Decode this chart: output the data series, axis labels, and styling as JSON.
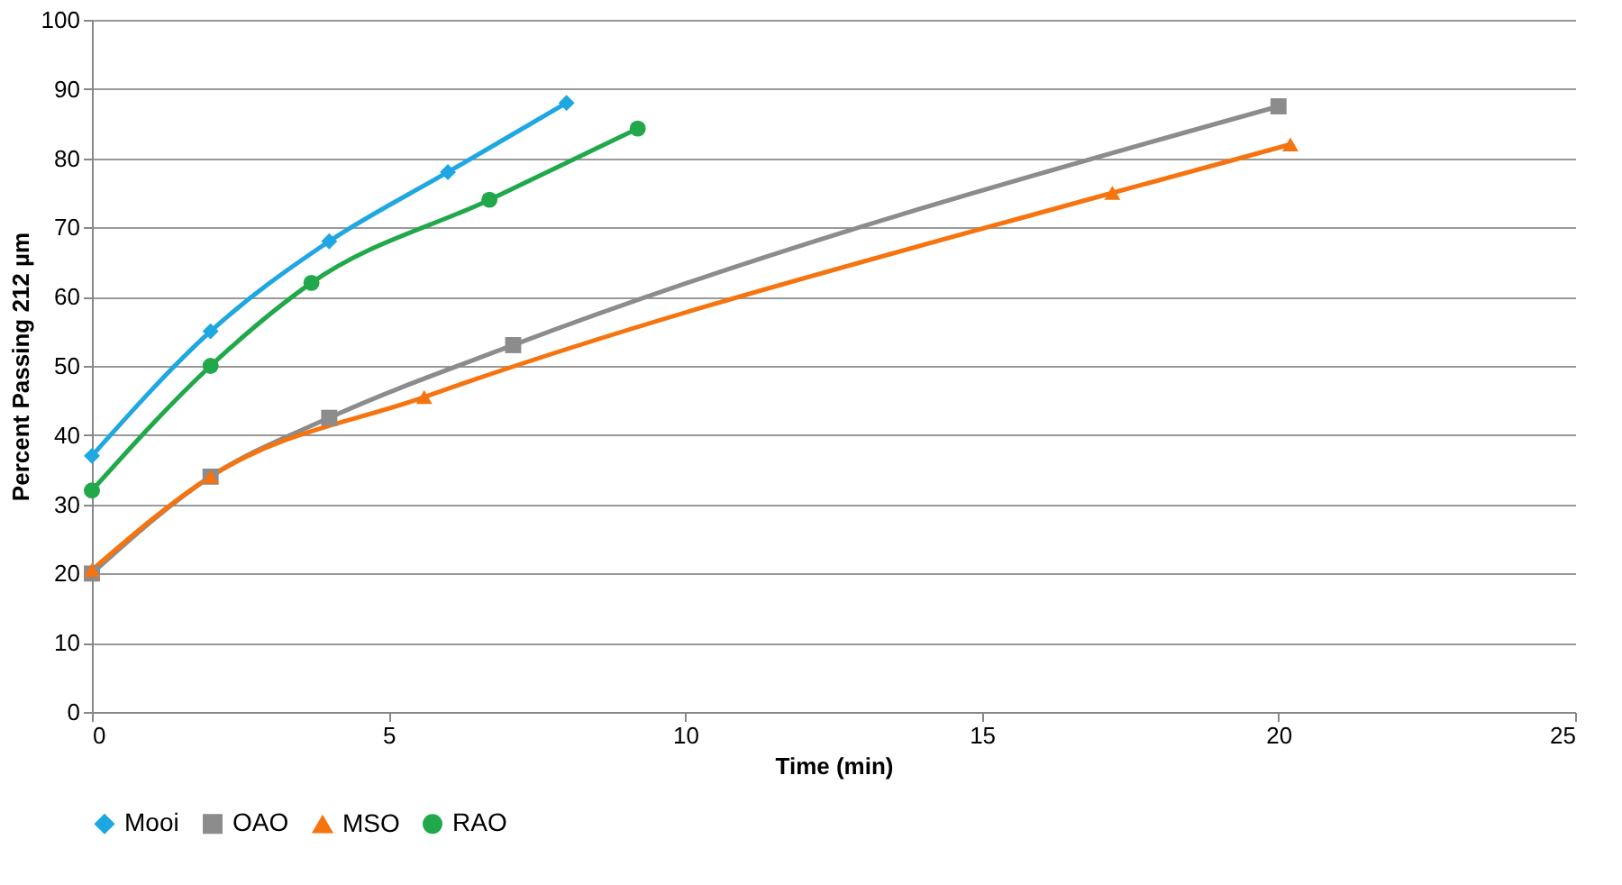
{
  "chart_data": {
    "type": "line",
    "xlabel": "Time (min)",
    "ylabel": "Percent  Passing  212  µm",
    "xlim": [
      0,
      25
    ],
    "xticks": [
      0,
      5,
      10,
      15,
      20,
      25
    ],
    "ylim": [
      0,
      100
    ],
    "yticks": [
      0,
      10,
      20,
      30,
      40,
      50,
      60,
      70,
      80,
      90,
      100
    ],
    "grid": "y",
    "legend": "bottom",
    "line_style": "solid",
    "series": [
      {
        "name": "Mooi",
        "color": "#1ea7e0",
        "marker": "diamond",
        "x": [
          0,
          2,
          4,
          6,
          8
        ],
        "values": [
          37,
          55,
          68,
          78,
          88
        ]
      },
      {
        "name": "OAO",
        "color": "#8c8c8c",
        "marker": "square",
        "x": [
          0,
          2,
          4,
          7.1,
          20
        ],
        "values": [
          20,
          34,
          42.5,
          53,
          87.5
        ]
      },
      {
        "name": "MSO",
        "color": "#f5740f",
        "marker": "triangle",
        "x": [
          0,
          2,
          5.6,
          17.2,
          20.2
        ],
        "values": [
          20.5,
          34,
          45.5,
          75,
          82
        ]
      },
      {
        "name": "RAO",
        "color": "#20a84a",
        "marker": "circle",
        "x": [
          0,
          2,
          3.7,
          6.7,
          9.2
        ],
        "values": [
          32,
          50,
          62,
          74,
          84.3
        ]
      }
    ]
  }
}
